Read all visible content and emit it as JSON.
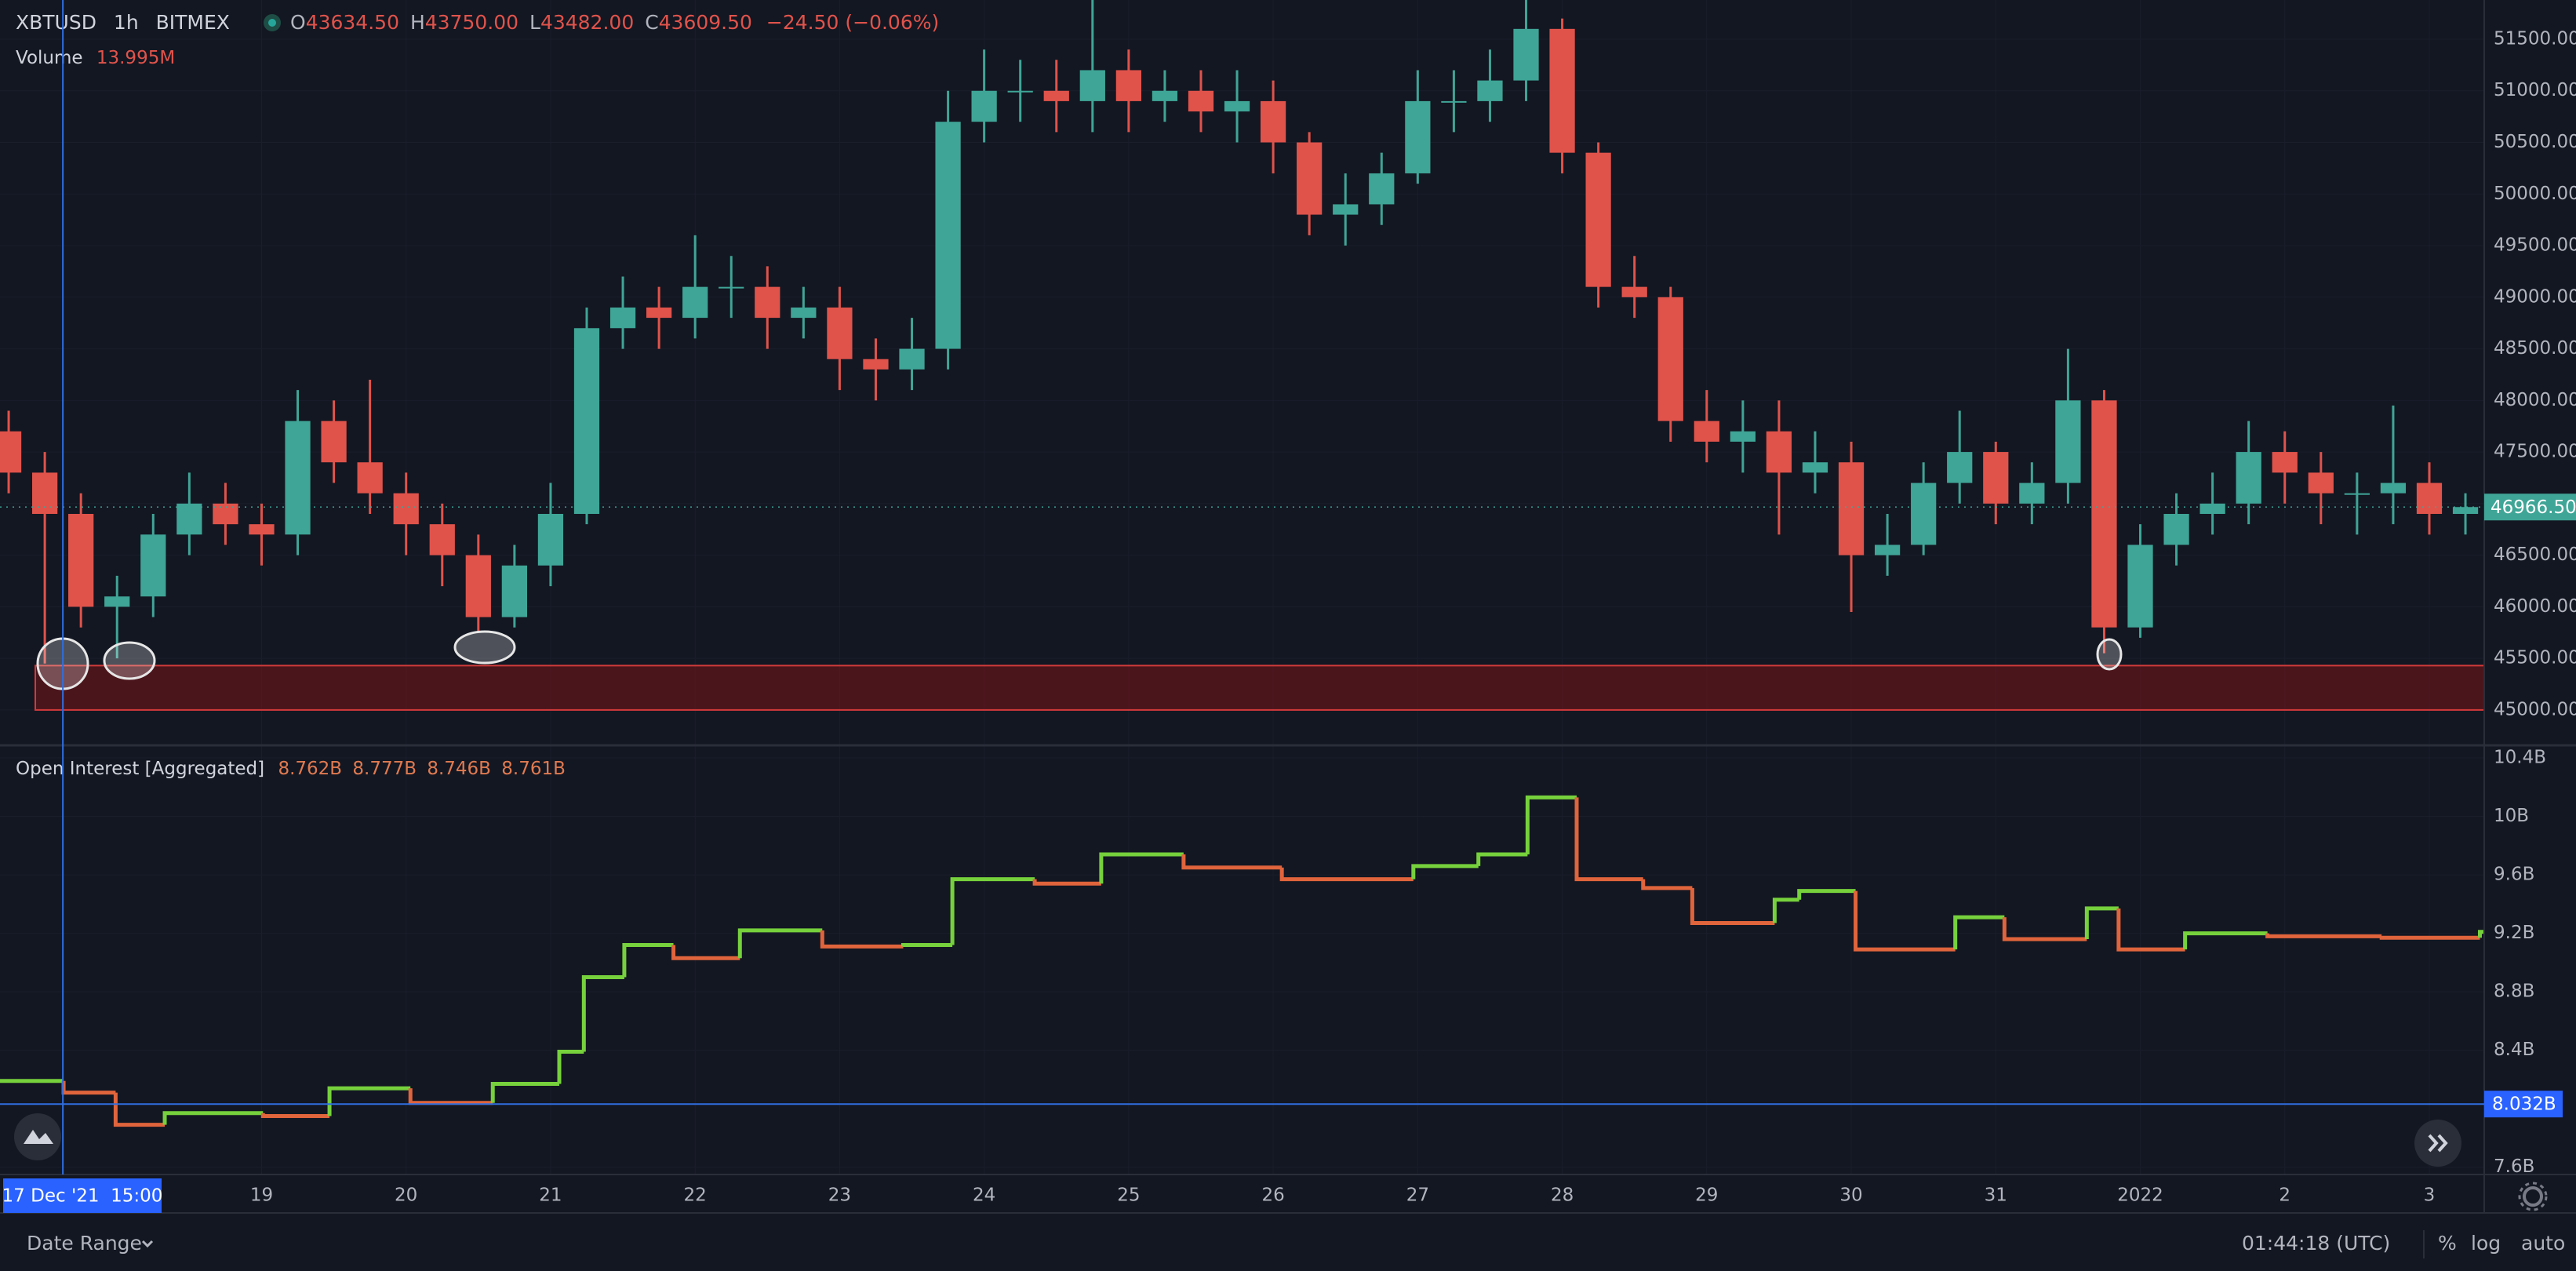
{
  "ui": {
    "date_range": "Date Range",
    "clock": "01:44:18 (UTC)",
    "percent": "%",
    "log": "log",
    "auto": "auto"
  },
  "chart_data": [
    {
      "type": "candlestick",
      "symbol": "XBTUSD",
      "interval": "1h",
      "exchange": "BITMEX",
      "ohlc_labels": [
        "O",
        "H",
        "L",
        "C"
      ],
      "ohlc_values": [
        "43634.50",
        "43750.00",
        "43482.00",
        "43609.50"
      ],
      "change": "−24.50 (−0.06%)",
      "volume_label": "Volume",
      "volume_value": "13.995M",
      "x": [
        0.25,
        0.5,
        0.75,
        1,
        1.25,
        1.5,
        1.75,
        2,
        2.25,
        2.5,
        2.75,
        3,
        3.25,
        3.5,
        3.75,
        4,
        4.25,
        4.5,
        4.75,
        5,
        5.25,
        5.5,
        5.75,
        6,
        6.25,
        6.5,
        6.75,
        7,
        7.25,
        7.5,
        7.75,
        8,
        8.25,
        8.5,
        8.75,
        9,
        9.25,
        9.5,
        9.75,
        10,
        10.25,
        10.5,
        10.75,
        11,
        11.25,
        11.5,
        11.75,
        12,
        12.25,
        12.5,
        12.75,
        13,
        13.25,
        13.5,
        13.75,
        14,
        14.25,
        14.5,
        14.75,
        15,
        15.25,
        15.5,
        15.75,
        16,
        16.25,
        16.5,
        16.75,
        17,
        17.25
      ],
      "open": [
        47700,
        47300,
        46900,
        46000,
        46100,
        46700,
        47000,
        46800,
        46700,
        47800,
        47400,
        47100,
        46800,
        46500,
        45900,
        46400,
        46900,
        48700,
        48900,
        48800,
        49100,
        49100,
        48800,
        48900,
        48400,
        48300,
        48500,
        50700,
        51000,
        51000,
        50900,
        51200,
        50900,
        51000,
        50800,
        50900,
        50500,
        49800,
        49900,
        50200,
        50900,
        50900,
        51100,
        51600,
        50400,
        49100,
        49000,
        47800,
        47600,
        47700,
        47300,
        47400,
        46500,
        46600,
        47200,
        47500,
        47000,
        47200,
        48000,
        45800,
        46600,
        46900,
        47000,
        47500,
        47300,
        47100,
        47100,
        47200,
        46900
      ],
      "high": [
        47900,
        47500,
        47100,
        46300,
        46900,
        47300,
        47200,
        47000,
        48100,
        48000,
        48200,
        47300,
        47000,
        46700,
        46600,
        47200,
        48900,
        49200,
        49100,
        49600,
        49400,
        49300,
        49100,
        49100,
        48600,
        48800,
        51000,
        51400,
        51300,
        51300,
        51880,
        51400,
        51200,
        51200,
        51200,
        51100,
        50600,
        50200,
        50400,
        51200,
        51200,
        51400,
        51880,
        51700,
        50500,
        49400,
        49100,
        48100,
        48000,
        48000,
        47700,
        47600,
        46900,
        47400,
        47900,
        47600,
        47400,
        48500,
        48100,
        46800,
        47100,
        47300,
        47800,
        47700,
        47500,
        47300,
        47950,
        47400,
        47100
      ],
      "low": [
        47100,
        45450,
        45800,
        45500,
        45900,
        46500,
        46600,
        46400,
        46500,
        47200,
        46900,
        46500,
        46200,
        45750,
        45800,
        46200,
        46800,
        48500,
        48500,
        48600,
        48800,
        48500,
        48600,
        48100,
        48000,
        48100,
        48300,
        50500,
        50700,
        50600,
        50600,
        50600,
        50700,
        50600,
        50500,
        50200,
        49600,
        49500,
        49700,
        50100,
        50600,
        50700,
        50900,
        50200,
        48900,
        48800,
        47600,
        47400,
        47300,
        46700,
        47100,
        45950,
        46300,
        46500,
        47000,
        46800,
        46800,
        47000,
        45550,
        45700,
        46400,
        46700,
        46800,
        47000,
        46800,
        46700,
        46800,
        46700,
        46700
      ],
      "close": [
        47300,
        46900,
        46000,
        46100,
        46700,
        47000,
        46800,
        46700,
        47800,
        47400,
        47100,
        46800,
        46500,
        45900,
        46400,
        46900,
        48700,
        48900,
        48800,
        49100,
        49100,
        48800,
        48900,
        48400,
        48300,
        48500,
        50700,
        51000,
        51000,
        50900,
        51200,
        50900,
        51000,
        50800,
        50900,
        50500,
        49800,
        49900,
        50200,
        50900,
        50900,
        51100,
        51600,
        50400,
        49100,
        49000,
        47800,
        47600,
        47700,
        47300,
        47400,
        46500,
        46600,
        47200,
        47500,
        47000,
        47200,
        48000,
        45800,
        46600,
        46900,
        47000,
        47500,
        47300,
        47100,
        47100,
        47200,
        46900,
        46966.5
      ],
      "up_color": "#3fa596",
      "down_color": "#e0534b",
      "xlim": [
        0.19,
        17.38
      ],
      "ylim": [
        44680,
        51880
      ],
      "yticks": [
        {
          "value": 45000,
          "label": "45000.00"
        },
        {
          "value": 45500,
          "label": "45500.00"
        },
        {
          "value": 46000,
          "label": "46000.00"
        },
        {
          "value": 46500,
          "label": "46500.00"
        },
        {
          "value": 47000,
          "label": "47000.00"
        },
        {
          "value": 47500,
          "label": "47500.00"
        },
        {
          "value": 48000,
          "label": "48000.00"
        },
        {
          "value": 48500,
          "label": "48500.00"
        },
        {
          "value": 49000,
          "label": "49000.00"
        },
        {
          "value": 49500,
          "label": "49500.00"
        },
        {
          "value": 50000,
          "label": "50000.00"
        },
        {
          "value": 50500,
          "label": "50500.00"
        },
        {
          "value": 51000,
          "label": "51000.00"
        },
        {
          "value": 51500,
          "label": "51500.00"
        }
      ],
      "xticks": [
        {
          "value": 2,
          "label": "19"
        },
        {
          "value": 3,
          "label": "20"
        },
        {
          "value": 4,
          "label": "21"
        },
        {
          "value": 5,
          "label": "22"
        },
        {
          "value": 6,
          "label": "23"
        },
        {
          "value": 7,
          "label": "24"
        },
        {
          "value": 8,
          "label": "25"
        },
        {
          "value": 9,
          "label": "26"
        },
        {
          "value": 10,
          "label": "27"
        },
        {
          "value": 11,
          "label": "28"
        },
        {
          "value": 12,
          "label": "29"
        },
        {
          "value": 13,
          "label": "30"
        },
        {
          "value": 14,
          "label": "31"
        },
        {
          "value": 15,
          "label": "2022"
        },
        {
          "value": 16,
          "label": "2"
        },
        {
          "value": 17,
          "label": "3"
        }
      ],
      "last_price": {
        "value": 46966.5,
        "label": "46966.50"
      },
      "zone": {
        "from": 45000,
        "to": 45430,
        "color": "#7a1418"
      },
      "crosshair": {
        "value": 0.625,
        "label": "17 Dec '21  15:00"
      }
    },
    {
      "type": "step",
      "title": "Open Interest [Aggregated]",
      "readout": [
        "8.762B",
        "8.777B",
        "8.746B",
        "8.761B"
      ],
      "x": [
        0.19,
        0.63,
        0.99,
        1.33,
        2.01,
        2.47,
        3.03,
        3.6,
        4.06,
        4.23,
        4.51,
        4.85,
        5.31,
        5.88,
        6.44,
        6.78,
        7.35,
        7.81,
        8.38,
        9.06,
        9.97,
        10.42,
        10.76,
        11.1,
        11.56,
        11.9,
        12.47,
        12.64,
        13.03,
        13.72,
        14.06,
        14.63,
        14.85,
        15.31,
        15.88,
        16.67,
        17.35
      ],
      "values": [
        8.19,
        8.11,
        7.89,
        7.97,
        7.95,
        8.14,
        8.04,
        8.17,
        8.39,
        8.9,
        9.12,
        9.03,
        9.22,
        9.11,
        9.12,
        9.57,
        9.54,
        9.74,
        9.65,
        9.57,
        9.66,
        9.74,
        10.13,
        9.57,
        9.51,
        9.27,
        9.43,
        9.49,
        9.09,
        9.31,
        9.16,
        9.37,
        9.09,
        9.2,
        9.18,
        9.17,
        9.21
      ],
      "up_color": "#76d13c",
      "down_color": "#e0643c",
      "xlim": [
        0.19,
        17.38
      ],
      "ylim": [
        7.55,
        10.47
      ],
      "yticks": [
        {
          "value": 7.6,
          "label": "7.6B"
        },
        {
          "value": 8.4,
          "label": "8.4B"
        },
        {
          "value": 8.8,
          "label": "8.8B"
        },
        {
          "value": 9.2,
          "label": "9.2B"
        },
        {
          "value": 9.6,
          "label": "9.6B"
        },
        {
          "value": 10,
          "label": "10B"
        },
        {
          "value": 10.4,
          "label": "10.4B"
        }
      ],
      "crosshair": {
        "value": 8.032,
        "label": "8.032B"
      }
    }
  ]
}
